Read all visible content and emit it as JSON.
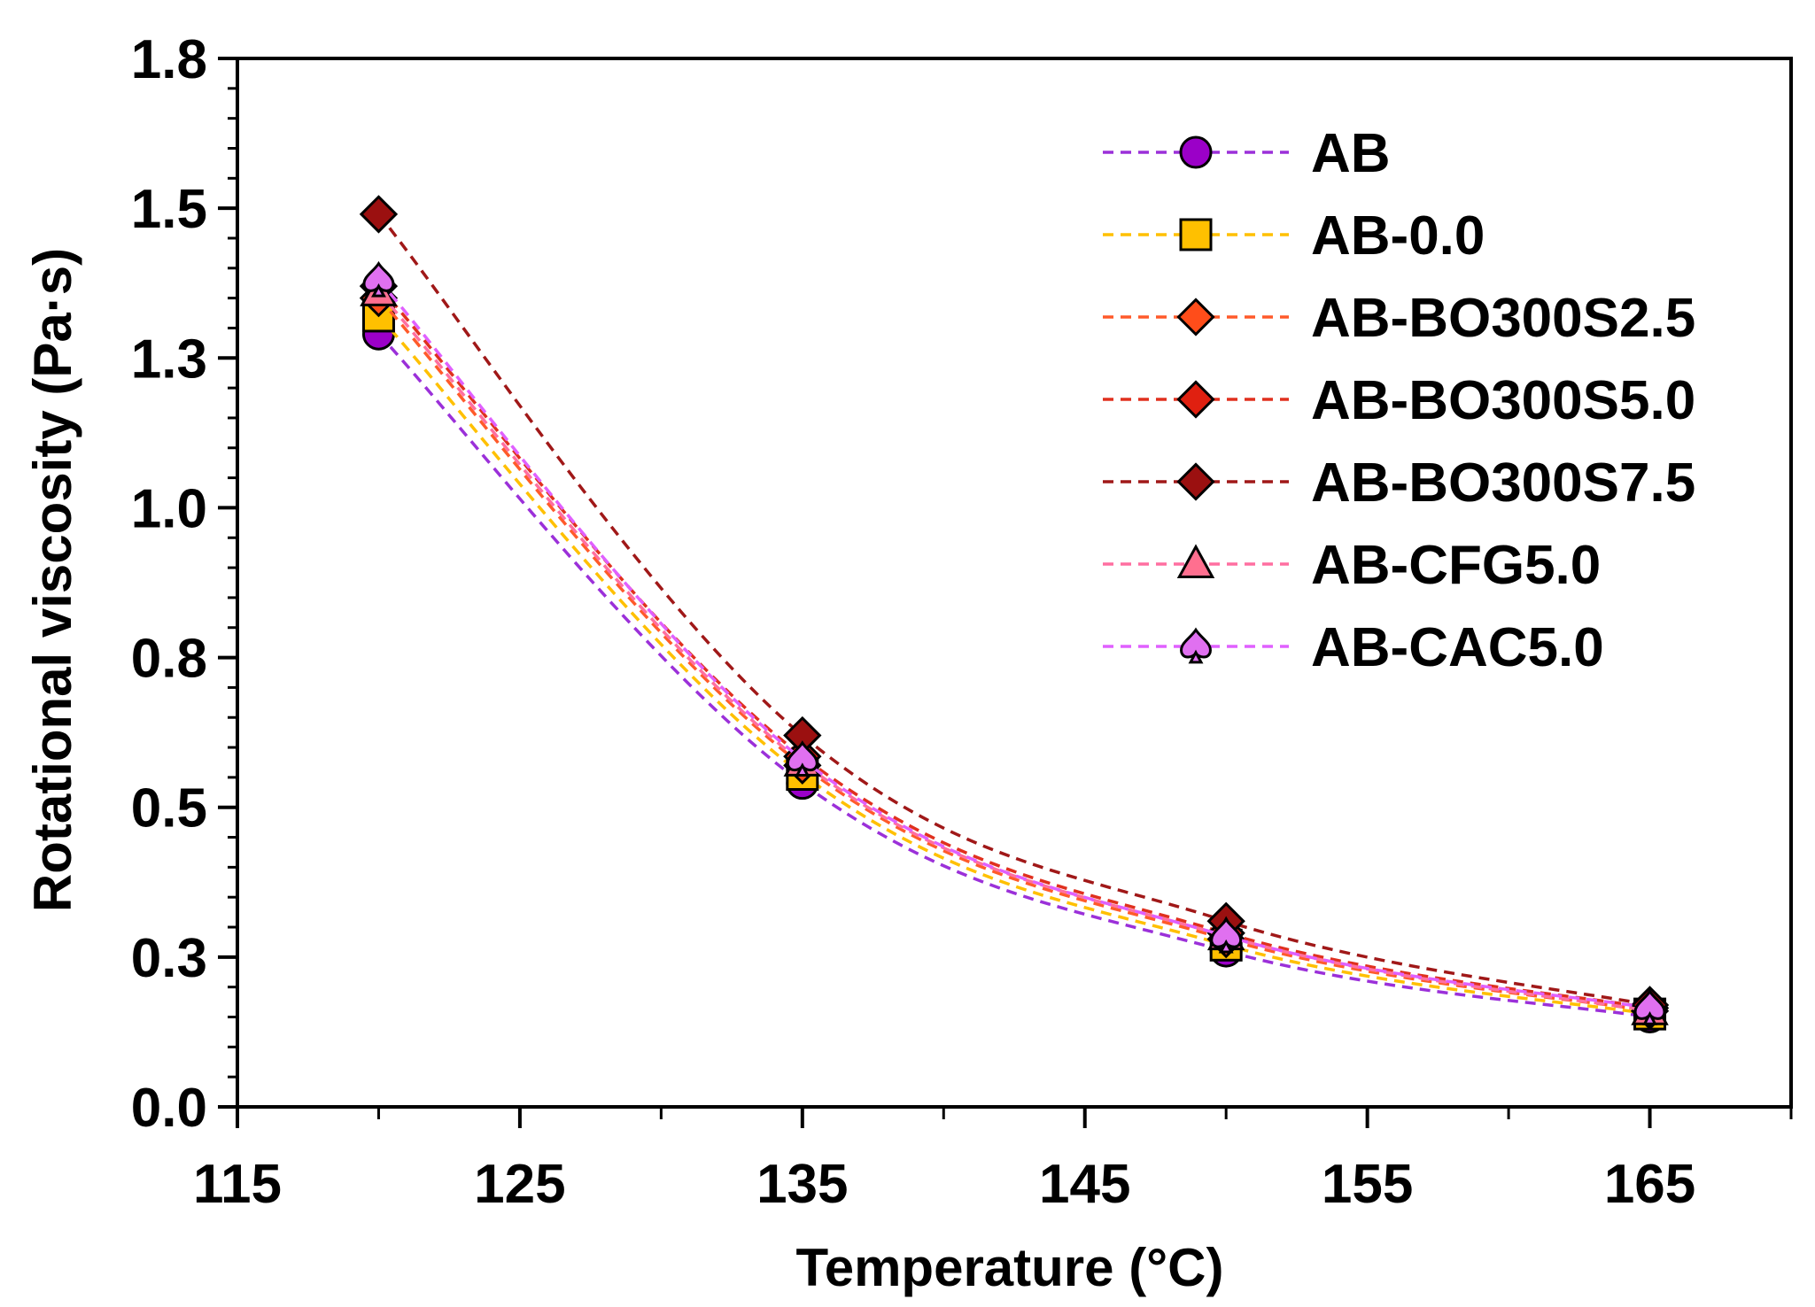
{
  "chart_data": {
    "type": "line",
    "xlabel": "Temperature (°C)",
    "ylabel": "Rotational viscosity (Pa·s)",
    "xlim": [
      115,
      170
    ],
    "ylim": [
      0,
      1.75
    ],
    "x_ticks": [
      115,
      125,
      135,
      145,
      155,
      165
    ],
    "x_tick_labels": [
      "115",
      "125",
      "135",
      "145",
      "155",
      "165"
    ],
    "y_ticks": [
      0,
      0.25,
      0.5,
      0.75,
      1.0,
      1.25,
      1.5,
      1.75
    ],
    "y_tick_labels": [
      "0.0",
      "0.3",
      "0.5",
      "0.8",
      "1.0",
      "1.3",
      "1.5",
      "1.8"
    ],
    "x": [
      120,
      135,
      150,
      165
    ],
    "legend_position": "top-right",
    "series": [
      {
        "name": "AB",
        "values": [
          1.29,
          0.54,
          0.26,
          0.15
        ],
        "color": "#9b30d9",
        "marker": "circle",
        "fill": "#9b00c8"
      },
      {
        "name": "AB-0.0",
        "values": [
          1.32,
          0.555,
          0.27,
          0.155
        ],
        "color": "#ffc000",
        "marker": "square",
        "fill": "#ffc000"
      },
      {
        "name": "AB-BO300S2.5",
        "values": [
          1.35,
          0.57,
          0.28,
          0.16
        ],
        "color": "#ff5a2a",
        "marker": "diamond",
        "fill": "#ff4d1a"
      },
      {
        "name": "AB-BO300S5.0",
        "values": [
          1.37,
          0.585,
          0.29,
          0.165
        ],
        "color": "#e0301e",
        "marker": "diamond",
        "fill": "#e02010"
      },
      {
        "name": "AB-BO300S7.5",
        "values": [
          1.49,
          0.62,
          0.31,
          0.17
        ],
        "color": "#a01818",
        "marker": "diamond",
        "fill": "#9b1010"
      },
      {
        "name": "AB-CFG5.0",
        "values": [
          1.36,
          0.575,
          0.285,
          0.16
        ],
        "color": "#ff6fa0",
        "marker": "triangle",
        "fill": "#ff6f8f"
      },
      {
        "name": "AB-CAC5.0",
        "values": [
          1.38,
          0.58,
          0.285,
          0.165
        ],
        "color": "#e060ff",
        "marker": "spade",
        "fill": "#e070f0"
      }
    ]
  }
}
